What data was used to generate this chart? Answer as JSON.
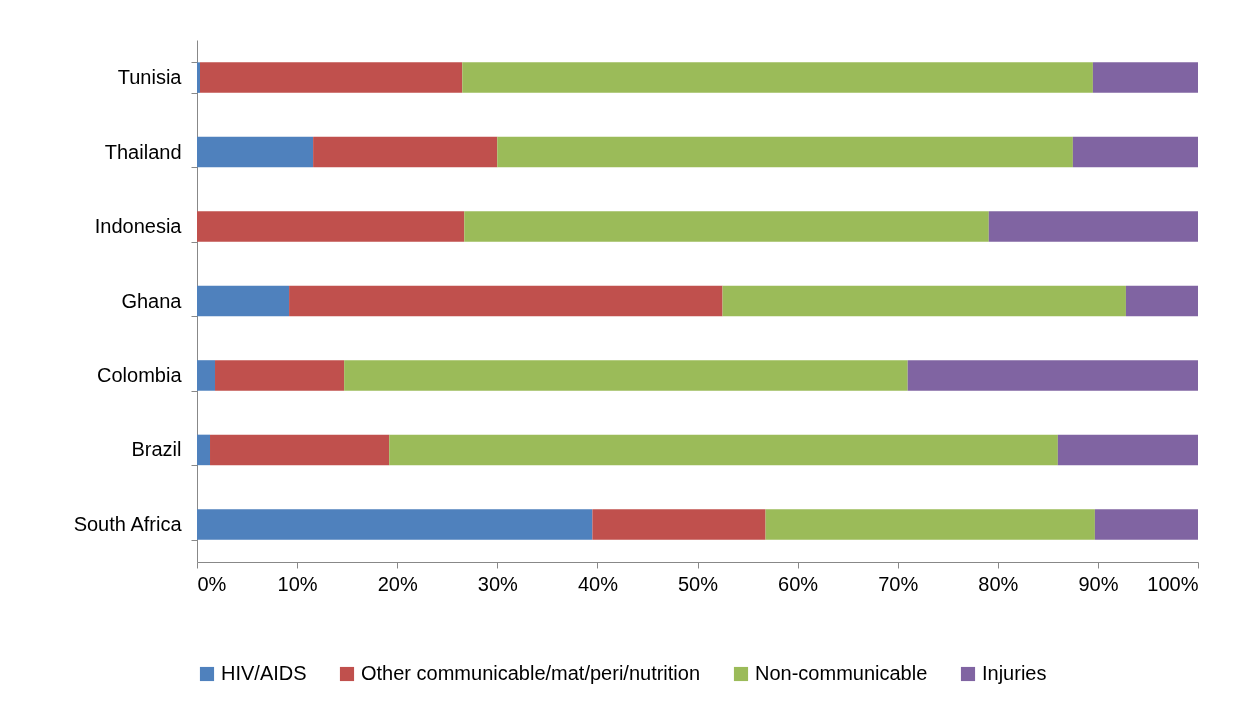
{
  "chart_data": {
    "type": "bar",
    "orientation": "horizontal",
    "stacked": true,
    "categories": [
      "Tunisia",
      "Thailand",
      "Indonesia",
      "Ghana",
      "Colombia",
      "Brazil",
      "South Africa"
    ],
    "series": [
      {
        "name": "HIV/AIDS",
        "color": "#4f81bd",
        "values": [
          0.3,
          11.6,
          0,
          9.2,
          1.8,
          1.3,
          39.5
        ]
      },
      {
        "name": "Other communicable/mat/peri/nutrition",
        "color": "#c0504d",
        "values": [
          26.2,
          18.4,
          26.7,
          43.3,
          12.9,
          17.9,
          17.3
        ]
      },
      {
        "name": "Non-communicable",
        "color": "#9bbb59",
        "values": [
          63.0,
          57.5,
          52.4,
          40.3,
          56.3,
          66.8,
          32.9
        ]
      },
      {
        "name": "Injuries",
        "color": "#8064a2",
        "values": [
          10.5,
          12.5,
          20.9,
          7.2,
          29.0,
          14.0,
          10.3
        ]
      }
    ],
    "xlim": [
      0,
      100
    ],
    "xticks": [
      {
        "value": 0,
        "label": "0%"
      },
      {
        "value": 10,
        "label": "10%"
      },
      {
        "value": 20,
        "label": "20%"
      },
      {
        "value": 30,
        "label": "30%"
      },
      {
        "value": 40,
        "label": "40%"
      },
      {
        "value": 50,
        "label": "50%"
      },
      {
        "value": 60,
        "label": "60%"
      },
      {
        "value": 70,
        "label": "70%"
      },
      {
        "value": 80,
        "label": "80%"
      },
      {
        "value": 90,
        "label": "90%"
      },
      {
        "value": 100,
        "label": "100%"
      }
    ],
    "grid": false,
    "legend": "bottom"
  }
}
